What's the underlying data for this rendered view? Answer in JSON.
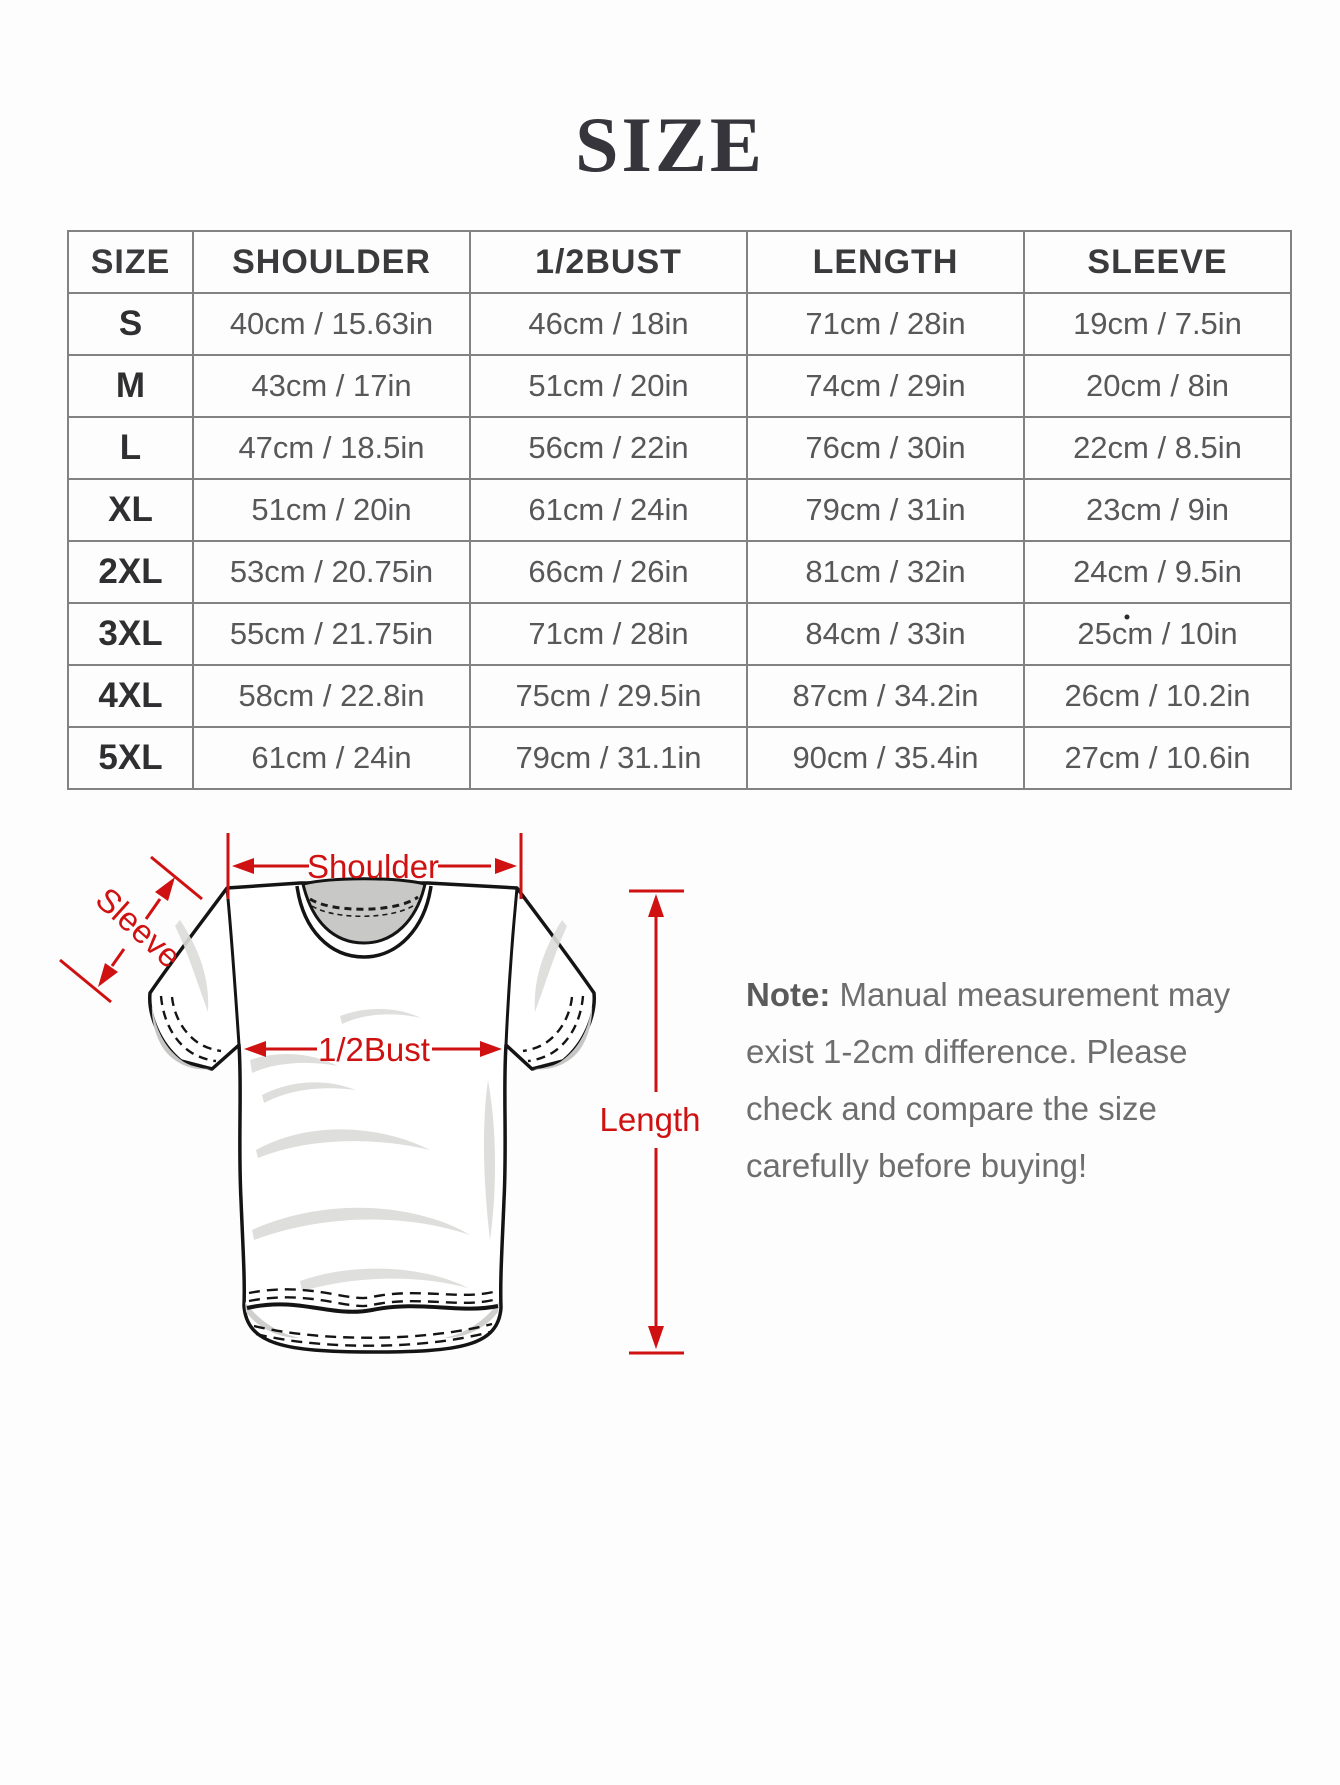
{
  "page": {
    "title": "SIZE",
    "background": "#fdfdfd",
    "accent_red": "#cf1111",
    "table_border_gray": "#828282",
    "collar_gray": "#c8c8c6"
  },
  "size_table": {
    "columns": [
      "SIZE",
      "SHOULDER",
      "1/2BUST",
      "LENGTH",
      "SLEEVE"
    ],
    "rows": [
      {
        "size": "S",
        "shoulder": "40cm / 15.63in",
        "bust": "46cm / 18in",
        "length": "71cm / 28in",
        "sleeve": "19cm / 7.5in"
      },
      {
        "size": "M",
        "shoulder": "43cm / 17in",
        "bust": "51cm / 20in",
        "length": "74cm / 29in",
        "sleeve": "20cm / 8in"
      },
      {
        "size": "L",
        "shoulder": "47cm / 18.5in",
        "bust": "56cm / 22in",
        "length": "76cm / 30in",
        "sleeve": "22cm / 8.5in"
      },
      {
        "size": "XL",
        "shoulder": "51cm / 20in",
        "bust": "61cm / 24in",
        "length": "79cm / 31in",
        "sleeve": "23cm / 9in"
      },
      {
        "size": "2XL",
        "shoulder": "53cm / 20.75in",
        "bust": "66cm / 26in",
        "length": "81cm / 32in",
        "sleeve": "24cm / 9.5in"
      },
      {
        "size": "3XL",
        "shoulder": "55cm / 21.75in",
        "bust": "71cm / 28in",
        "length": "84cm / 33in",
        "sleeve": "25cm / 10in"
      },
      {
        "size": "4XL",
        "shoulder": "58cm / 22.8in",
        "bust": "75cm / 29.5in",
        "length": "87cm / 34.2in",
        "sleeve": "26cm / 10.2in"
      },
      {
        "size": "5XL",
        "shoulder": "61cm / 24in",
        "bust": "79cm / 31.1in",
        "length": "90cm / 35.4in",
        "sleeve": "27cm / 10.6in"
      }
    ]
  },
  "diagram": {
    "labels": {
      "shoulder": "Shoulder",
      "sleeve": "Sleeve",
      "bust": "1/2Bust",
      "length": "Length"
    }
  },
  "note": {
    "prefix": "Note:",
    "text": " Manual measurement may exist 1-2cm difference. Please check and compare the size carefully before buying!"
  }
}
